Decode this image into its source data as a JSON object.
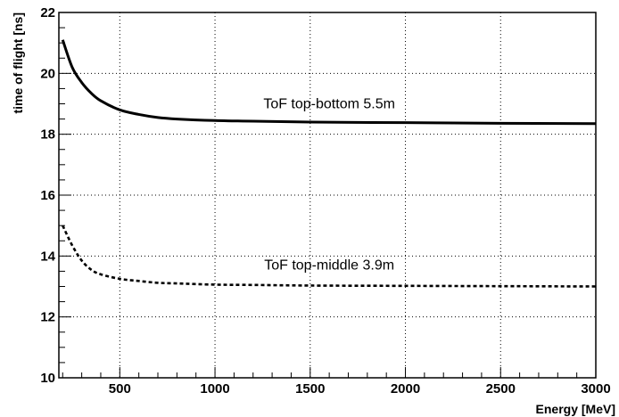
{
  "chart_data": {
    "type": "line",
    "title": "",
    "xlabel": "Energy [MeV]",
    "ylabel": "time of flight [ns]",
    "xlim": [
      180,
      3000
    ],
    "ylim": [
      10,
      22
    ],
    "x_ticks": [
      500,
      1000,
      1500,
      2000,
      2500,
      3000
    ],
    "y_ticks": [
      10,
      12,
      14,
      16,
      18,
      20,
      22
    ],
    "grid": true,
    "legend": "none",
    "series": [
      {
        "name": "ToF top-bottom 5.5m",
        "style": "solid",
        "color": "#000000",
        "x": [
          200,
          250,
          300,
          350,
          400,
          500,
          600,
          700,
          800,
          1000,
          1200,
          1500,
          2000,
          2500,
          3000
        ],
        "y": [
          21.1,
          20.2,
          19.7,
          19.35,
          19.1,
          18.8,
          18.65,
          18.55,
          18.5,
          18.45,
          18.43,
          18.4,
          18.38,
          18.36,
          18.35
        ]
      },
      {
        "name": "ToF top-middle 3.9m",
        "style": "dotted",
        "color": "#000000",
        "x": [
          200,
          250,
          300,
          350,
          400,
          500,
          600,
          700,
          800,
          1000,
          1200,
          1500,
          2000,
          2500,
          3000
        ],
        "y": [
          15.0,
          14.35,
          13.85,
          13.55,
          13.4,
          13.25,
          13.18,
          13.12,
          13.1,
          13.06,
          13.05,
          13.03,
          13.02,
          13.01,
          13.0
        ]
      }
    ]
  }
}
